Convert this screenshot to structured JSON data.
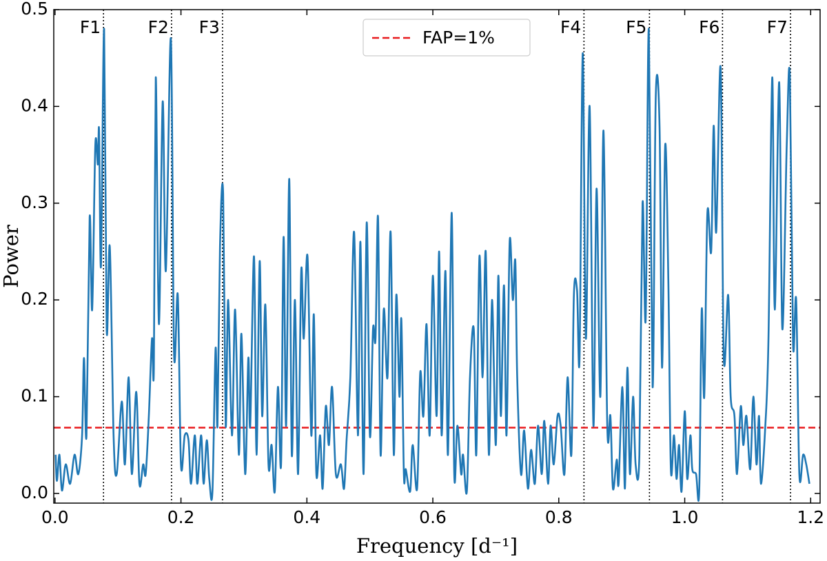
{
  "chart_data": {
    "type": "line",
    "xlabel": "Frequency [d⁻¹]",
    "ylabel": "Power",
    "color": "#1f77b4",
    "x": [
      0.001,
      0.003,
      0.007,
      0.011,
      0.017,
      0.024,
      0.031,
      0.037,
      0.043,
      0.046,
      0.05,
      0.055,
      0.059,
      0.064,
      0.068,
      0.07,
      0.073,
      0.078,
      0.082,
      0.087,
      0.093,
      0.098,
      0.106,
      0.111,
      0.117,
      0.122,
      0.129,
      0.134,
      0.14,
      0.144,
      0.149,
      0.154,
      0.157,
      0.16,
      0.165,
      0.171,
      0.176,
      0.184,
      0.189,
      0.195,
      0.2,
      0.206,
      0.212,
      0.216,
      0.222,
      0.226,
      0.232,
      0.236,
      0.241,
      0.245,
      0.25,
      0.255,
      0.258,
      0.262,
      0.267,
      0.271,
      0.275,
      0.281,
      0.286,
      0.292,
      0.296,
      0.302,
      0.307,
      0.31,
      0.316,
      0.32,
      0.325,
      0.329,
      0.334,
      0.339,
      0.344,
      0.349,
      0.354,
      0.359,
      0.363,
      0.367,
      0.372,
      0.376,
      0.381,
      0.386,
      0.391,
      0.395,
      0.401,
      0.407,
      0.411,
      0.415,
      0.421,
      0.425,
      0.43,
      0.435,
      0.44,
      0.446,
      0.454,
      0.459,
      0.463,
      0.469,
      0.475,
      0.481,
      0.485,
      0.49,
      0.495,
      0.5,
      0.505,
      0.509,
      0.513,
      0.517,
      0.522,
      0.528,
      0.533,
      0.538,
      0.542,
      0.547,
      0.55,
      0.554,
      0.557,
      0.564,
      0.568,
      0.575,
      0.58,
      0.585,
      0.59,
      0.595,
      0.6,
      0.606,
      0.61,
      0.614,
      0.62,
      0.624,
      0.63,
      0.634,
      0.639,
      0.645,
      0.648,
      0.654,
      0.659,
      0.665,
      0.669,
      0.674,
      0.679,
      0.684,
      0.689,
      0.694,
      0.7,
      0.704,
      0.708,
      0.713,
      0.717,
      0.722,
      0.727,
      0.731,
      0.734,
      0.74,
      0.745,
      0.751,
      0.756,
      0.762,
      0.767,
      0.773,
      0.777,
      0.783,
      0.787,
      0.792,
      0.798,
      0.803,
      0.809,
      0.814,
      0.82,
      0.824,
      0.829,
      0.833,
      0.838,
      0.843,
      0.849,
      0.855,
      0.86,
      0.866,
      0.871,
      0.877,
      0.882,
      0.886,
      0.892,
      0.895,
      0.901,
      0.905,
      0.909,
      0.913,
      0.918,
      0.922,
      0.928,
      0.933,
      0.938,
      0.943,
      0.949,
      0.954,
      0.96,
      0.964,
      0.969,
      0.974,
      0.978,
      0.983,
      0.987,
      0.991,
      0.995,
      1.0,
      1.004,
      1.009,
      1.012,
      1.018,
      1.023,
      1.027,
      1.031,
      1.036,
      1.042,
      1.046,
      1.05,
      1.057,
      1.062,
      1.069,
      1.073,
      1.079,
      1.083,
      1.089,
      1.093,
      1.098,
      1.104,
      1.109,
      1.114,
      1.118,
      1.121,
      1.128,
      1.133,
      1.139,
      1.143,
      1.15,
      1.155,
      1.162,
      1.167,
      1.172,
      1.177,
      1.182,
      1.188,
      1.193,
      1.198
    ],
    "values": [
      0.04,
      0.013,
      0.04,
      0.003,
      0.03,
      0.01,
      0.04,
      0.02,
      0.06,
      0.14,
      0.06,
      0.285,
      0.19,
      0.36,
      0.34,
      0.375,
      0.235,
      0.48,
      0.17,
      0.255,
      0.06,
      0.02,
      0.095,
      0.03,
      0.12,
      0.02,
      0.105,
      0.01,
      0.03,
      0.02,
      0.08,
      0.16,
      0.13,
      0.43,
      0.175,
      0.405,
      0.23,
      0.47,
      0.145,
      0.205,
      0.03,
      0.06,
      0.055,
      0.01,
      0.06,
      0.01,
      0.06,
      0.01,
      0.055,
      0.015,
      0.002,
      0.15,
      0.07,
      0.255,
      0.31,
      0.07,
      0.2,
      0.06,
      0.19,
      0.04,
      0.165,
      0.02,
      0.14,
      0.07,
      0.245,
      0.04,
      0.24,
      0.08,
      0.195,
      0.03,
      0.05,
      0.002,
      0.11,
      0.03,
      0.265,
      0.07,
      0.325,
      0.04,
      0.2,
      0.02,
      0.23,
      0.16,
      0.245,
      0.06,
      0.185,
      0.02,
      0.06,
      0.005,
      0.09,
      0.05,
      0.11,
      0.02,
      0.03,
      0.005,
      0.055,
      0.12,
      0.27,
      0.06,
      0.26,
      0.02,
      0.28,
      0.06,
      0.17,
      0.16,
      0.285,
      0.04,
      0.19,
      0.12,
      0.27,
      0.04,
      0.205,
      0.1,
      0.18,
      0.02,
      0.025,
      0.002,
      0.05,
      0.005,
      0.125,
      0.08,
      0.175,
      0.06,
      0.225,
      0.08,
      0.25,
      0.06,
      0.23,
      0.04,
      0.29,
      0.02,
      0.07,
      0.02,
      0.04,
      0.002,
      0.12,
      0.17,
      0.04,
      0.245,
      0.12,
      0.25,
      0.04,
      0.2,
      0.05,
      0.225,
      0.08,
      0.215,
      0.06,
      0.26,
      0.2,
      0.24,
      0.12,
      0.02,
      0.065,
      0.005,
      0.045,
      0.01,
      0.07,
      0.02,
      0.075,
      0.01,
      0.07,
      0.03,
      0.08,
      0.07,
      0.02,
      0.12,
      0.04,
      0.205,
      0.21,
      0.14,
      0.455,
      0.16,
      0.4,
      0.07,
      0.315,
      0.1,
      0.375,
      0.07,
      0.08,
      0.005,
      0.035,
      0.01,
      0.11,
      0.005,
      0.13,
      0.02,
      0.1,
      0.03,
      0.04,
      0.3,
      0.18,
      0.48,
      0.11,
      0.41,
      0.38,
      0.13,
      0.36,
      0.22,
      0.025,
      0.06,
      0.015,
      0.05,
      0.002,
      0.085,
      0.015,
      0.06,
      0.025,
      0.02,
      0.002,
      0.19,
      0.1,
      0.29,
      0.25,
      0.38,
      0.27,
      0.44,
      0.14,
      0.205,
      0.1,
      0.08,
      0.02,
      0.09,
      0.05,
      0.08,
      0.025,
      0.1,
      0.03,
      0.08,
      0.01,
      0.07,
      0.16,
      0.43,
      0.19,
      0.425,
      0.17,
      0.36,
      0.43,
      0.155,
      0.2,
      0.02,
      0.04,
      0.03,
      0.01
    ],
    "fap": {
      "name": "FAP=1%",
      "value": 0.068,
      "color": "#e8191c"
    },
    "vlines": [
      {
        "label": "F1",
        "x": 0.077
      },
      {
        "label": "F2",
        "x": 0.185
      },
      {
        "label": "F3",
        "x": 0.266
      },
      {
        "label": "F4",
        "x": 0.84
      },
      {
        "label": "F5",
        "x": 0.944
      },
      {
        "label": "F6",
        "x": 1.06
      },
      {
        "label": "F7",
        "x": 1.168
      }
    ],
    "xlim": [
      -0.002,
      1.215
    ],
    "ylim": [
      -0.01,
      0.5
    ],
    "xticks": [
      {
        "value": 0,
        "label": "0.0"
      },
      0.2,
      0.4,
      0.6,
      0.8,
      {
        "value": 1,
        "label": "1.0"
      },
      1.2
    ],
    "yticks": [
      {
        "value": 0,
        "label": "0.0"
      },
      0.1,
      0.2,
      0.3,
      0.4,
      0.5
    ],
    "legend": "upper center"
  }
}
